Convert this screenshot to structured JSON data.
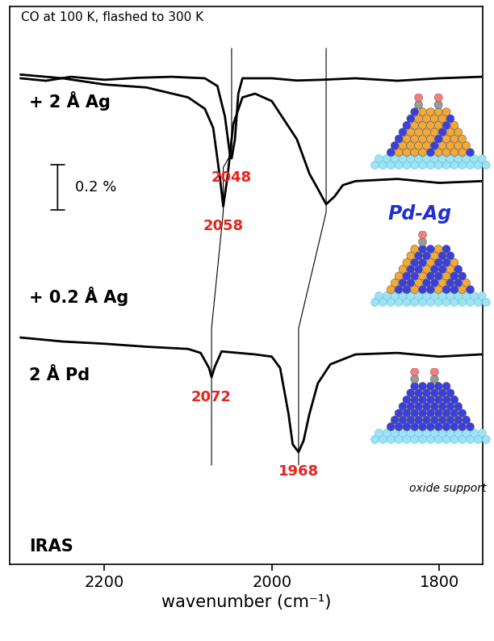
{
  "chart_data": {
    "type": "line",
    "title": "CO at 100 K, flashed to 300 K",
    "x_label": "wavenumber (cm⁻¹)",
    "xlim": [
      2313,
      1748
    ],
    "xticks": [
      2200,
      2000,
      1800
    ],
    "ylim": [
      0,
      2.25
    ],
    "tick_labels": "x",
    "series": [
      {
        "name": "+ 2 Å Ag",
        "color": "#000000",
        "x": [
          2300,
          2270,
          2240,
          2200,
          2160,
          2120,
          2080,
          2065,
          2056,
          2050,
          2048,
          2044,
          2040,
          2035,
          2000,
          1970,
          1940,
          1900,
          1850,
          1800,
          1750
        ],
        "values": [
          1.96,
          1.95,
          1.966,
          1.954,
          1.962,
          1.966,
          1.96,
          1.929,
          1.806,
          1.652,
          1.637,
          1.714,
          1.898,
          1.96,
          1.96,
          1.951,
          1.954,
          1.96,
          1.95,
          1.96,
          1.966
        ],
        "peaks": [
          2048
        ]
      },
      {
        "name": "+ 0.2 Å Ag",
        "color": "#000000",
        "x": [
          2300,
          2250,
          2200,
          2150,
          2100,
          2080,
          2070,
          2062,
          2058,
          2053,
          2046,
          2035,
          2020,
          2000,
          1985,
          1970,
          1955,
          1945,
          1935,
          1925,
          1915,
          1900,
          1850,
          1800,
          1750
        ],
        "values": [
          1.975,
          1.96,
          1.935,
          1.923,
          1.883,
          1.837,
          1.76,
          1.56,
          1.443,
          1.56,
          1.775,
          1.883,
          1.898,
          1.868,
          1.791,
          1.714,
          1.575,
          1.514,
          1.452,
          1.483,
          1.529,
          1.545,
          1.554,
          1.538,
          1.545
        ],
        "peaks": [
          2058
        ]
      },
      {
        "name": "2 Å Pd",
        "color": "#000000",
        "x": [
          2300,
          2250,
          2200,
          2150,
          2100,
          2085,
          2075,
          2072,
          2068,
          2060,
          2040,
          2020,
          2000,
          1990,
          1980,
          1975,
          1968,
          1962,
          1955,
          1945,
          1930,
          1900,
          1850,
          1800,
          1750
        ],
        "values": [
          0.914,
          0.898,
          0.889,
          0.877,
          0.868,
          0.852,
          0.791,
          0.754,
          0.797,
          0.858,
          0.852,
          0.846,
          0.837,
          0.791,
          0.606,
          0.483,
          0.452,
          0.498,
          0.606,
          0.729,
          0.806,
          0.846,
          0.852,
          0.837,
          0.846
        ],
        "peaks": [
          2072,
          1968
        ]
      }
    ],
    "guide_lines": [
      [
        2048,
        2058,
        2072
      ],
      [
        1935,
        1935,
        1968
      ]
    ],
    "scale_bar": {
      "value": 0.2,
      "label": "0.2 %"
    },
    "annotations": [
      "IRAS",
      "Pd-Ag",
      "Pd",
      "oxide support"
    ]
  }
}
